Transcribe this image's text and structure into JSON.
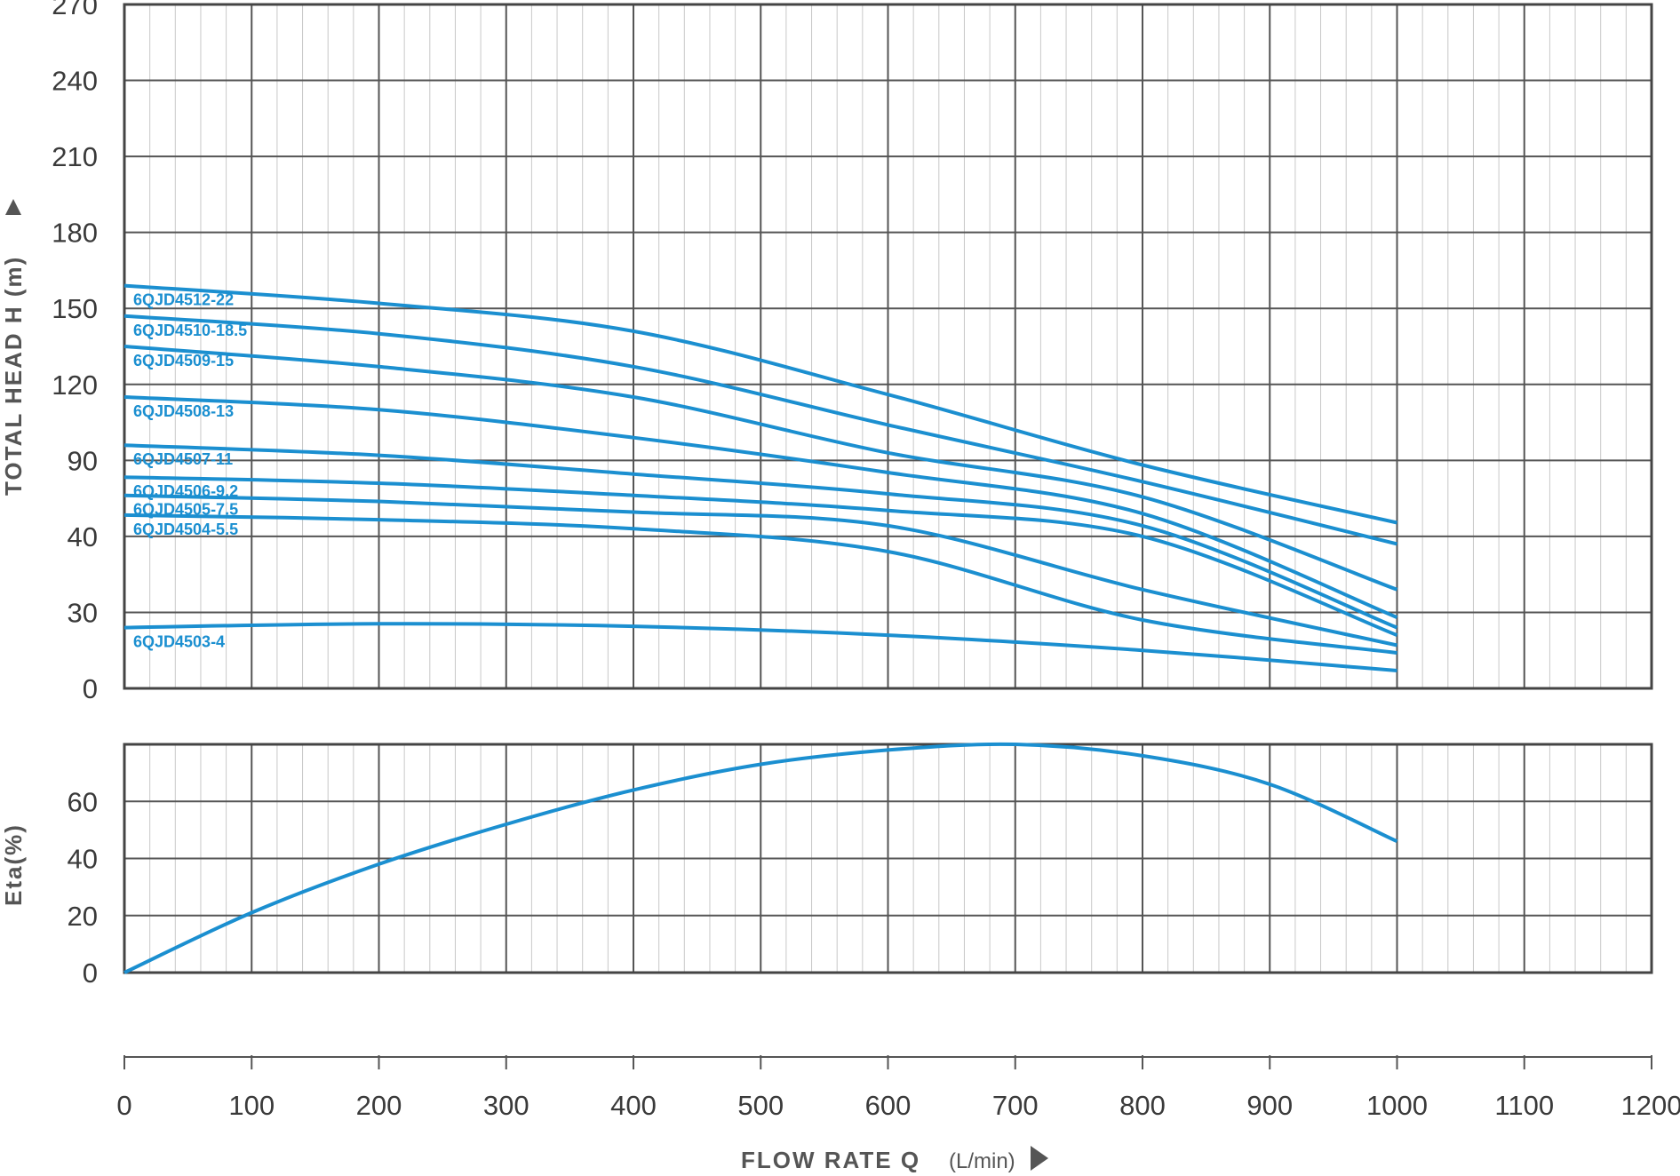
{
  "chart_data": [
    {
      "type": "line",
      "ylabel": "TOTAL HEAD H (m)",
      "y_tick_labels": [
        "0",
        "30",
        "40",
        "90",
        "120",
        "150",
        "180",
        "210",
        "240",
        "270"
      ],
      "xlim": [
        0,
        1200
      ],
      "grid": true,
      "series_color": "#1b8fd0",
      "series": [
        {
          "name": "6QJD4512-22",
          "x": [
            0,
            200,
            400,
            600,
            800,
            1000
          ],
          "y": [
            159,
            152,
            141,
            116,
            87,
            49
          ]
        },
        {
          "name": "6QJD4510-18.5",
          "x": [
            0,
            200,
            400,
            600,
            800,
            1000
          ],
          "y": [
            147,
            140,
            127,
            104,
            76,
            39
          ]
        },
        {
          "name": "6QJD4509-15",
          "x": [
            0,
            200,
            400,
            600,
            800,
            1000
          ],
          "y": [
            135,
            127,
            115,
            93,
            66,
            33
          ]
        },
        {
          "name": "6QJD4508-13",
          "x": [
            0,
            200,
            400,
            600,
            800,
            1000
          ],
          "y": [
            115,
            110,
            99,
            82,
            55,
            28
          ]
        },
        {
          "name": "6QJD4507-11",
          "x": [
            0,
            200,
            400,
            600,
            800,
            1000
          ],
          "y": [
            96,
            92,
            81,
            68,
            47,
            24
          ]
        },
        {
          "name": "6QJD4506-9.2",
          "x": [
            0,
            200,
            400,
            600,
            800,
            1000
          ],
          "y": [
            79,
            75,
            67,
            57,
            40,
            21
          ]
        },
        {
          "name": "6QJD4505-7.5",
          "x": [
            0,
            200,
            400,
            600,
            800,
            1000
          ],
          "y": [
            67,
            63,
            56,
            47,
            33,
            17
          ]
        },
        {
          "name": "6QJD4504-5.5",
          "x": [
            0,
            200,
            400,
            600,
            800,
            1000
          ],
          "y": [
            54,
            51,
            45,
            38,
            27,
            14
          ]
        },
        {
          "name": "6QJD4503-4",
          "x": [
            0,
            200,
            400,
            600,
            800,
            1000
          ],
          "y": [
            24,
            25.5,
            24.5,
            21,
            15,
            7
          ]
        }
      ]
    },
    {
      "type": "line",
      "ylabel": "Eta(%)",
      "y_tick_labels": [
        "0",
        "20",
        "40",
        "60"
      ],
      "ylim": [
        0,
        80
      ],
      "xlim": [
        0,
        1200
      ],
      "grid": true,
      "series_color": "#1b8fd0",
      "series": [
        {
          "x": [
            0,
            100,
            200,
            300,
            400,
            500,
            600,
            700,
            800,
            900,
            1000
          ],
          "y": [
            0,
            21,
            38,
            52,
            64,
            73,
            78,
            80,
            76,
            66,
            46
          ]
        }
      ]
    }
  ],
  "x_axis": {
    "label": "FLOW RATE Q",
    "unit": "(L/min)",
    "tick_labels": [
      "0",
      "100",
      "200",
      "300",
      "400",
      "500",
      "600",
      "700",
      "800",
      "900",
      "1000",
      "1100",
      "1200"
    ]
  }
}
